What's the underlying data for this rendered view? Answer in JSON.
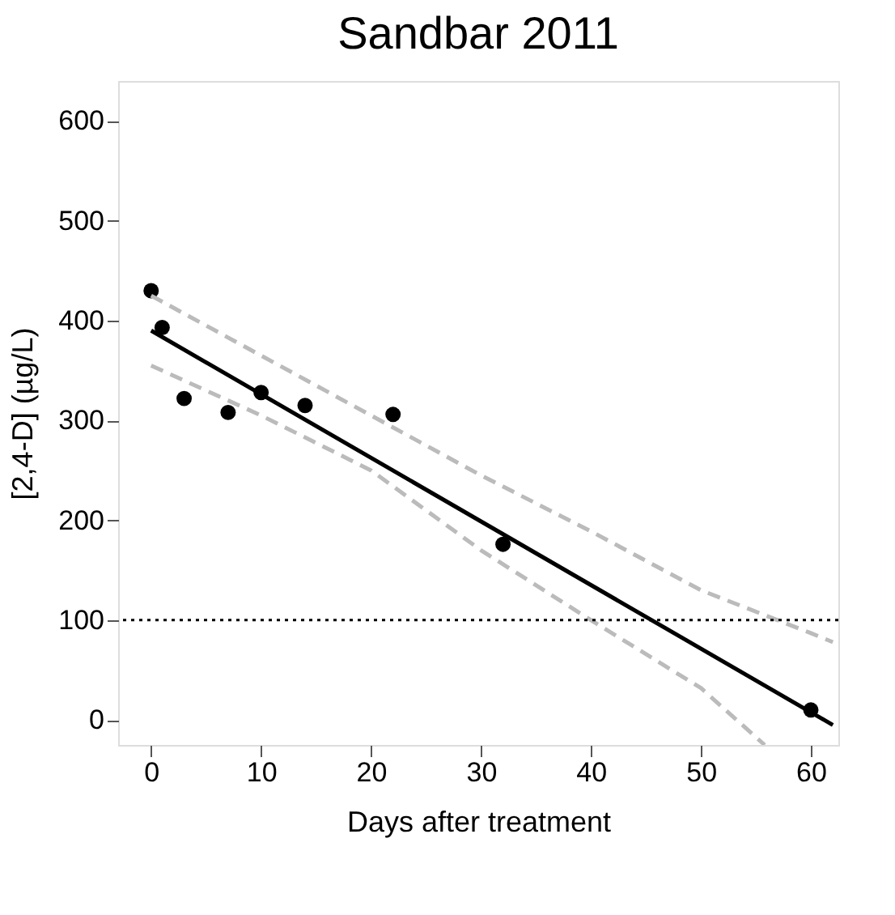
{
  "chart_data": {
    "type": "scatter",
    "title": "Sandbar 2011",
    "xlabel": "Days after treatment",
    "ylabel": "[2,4-D] (µg/L)",
    "xlim": [
      -3,
      62.5
    ],
    "ylim": [
      -25,
      640
    ],
    "xticks": [
      0,
      10,
      20,
      30,
      40,
      50,
      60
    ],
    "yticks": [
      0,
      100,
      200,
      300,
      400,
      500,
      600
    ],
    "grid": false,
    "series": [
      {
        "color": "#000000",
        "marker": "circle",
        "x": [
          0,
          1,
          3,
          7,
          10,
          14,
          22,
          32,
          60
        ],
        "values": [
          430,
          393,
          322,
          308,
          328,
          315,
          306,
          176,
          10
        ]
      },
      {
        "type": "line",
        "color": "#000000",
        "line_style": "solid",
        "x": [
          0,
          62
        ],
        "values": [
          390,
          -5
        ]
      },
      {
        "type": "line",
        "color": "#bbbbbb",
        "line_style": "dashed",
        "x": [
          0,
          15,
          30,
          40,
          50,
          60,
          62
        ],
        "values": [
          425,
          335,
          245,
          189,
          130,
          87,
          78
        ]
      },
      {
        "type": "line",
        "color": "#bbbbbb",
        "line_style": "dashed",
        "x": [
          0,
          10,
          20,
          30,
          40,
          50,
          55.8
        ],
        "values": [
          355,
          305,
          250,
          170,
          100,
          32,
          -25
        ]
      }
    ],
    "ref_lines": [
      {
        "axis": "y",
        "value": 100,
        "line_style": "dotted",
        "color": "#000000"
      }
    ]
  }
}
